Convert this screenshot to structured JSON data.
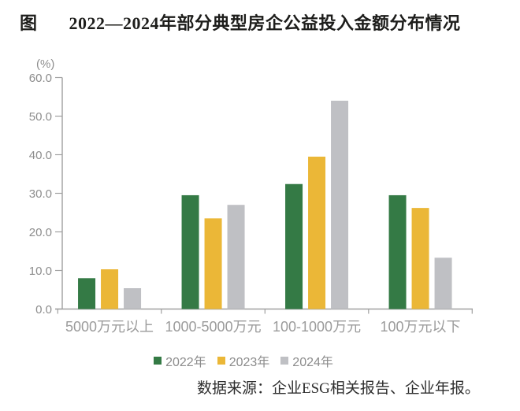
{
  "title": {
    "prefix": "图",
    "text": "2022—2024年部分典型房企公益投入金额分布情况"
  },
  "chart_data": {
    "type": "bar",
    "categories": [
      "5000万元以上",
      "1000-5000万元",
      "100-1000万元",
      "100万元以下"
    ],
    "series": [
      {
        "name": "2022年",
        "color": "#347a45",
        "values": [
          8.0,
          29.5,
          32.4,
          29.5
        ]
      },
      {
        "name": "2023年",
        "color": "#ebb737",
        "values": [
          10.3,
          23.5,
          39.5,
          26.2
        ]
      },
      {
        "name": "2024年",
        "color": "#bfc0c4",
        "values": [
          5.4,
          27.0,
          54.0,
          13.3
        ]
      }
    ],
    "ylabel": "(%)",
    "ylim": [
      0,
      60
    ],
    "ytick_step": 10,
    "ytick_labels": [
      "0.0",
      "10.0",
      "20.0",
      "30.0",
      "40.0",
      "50.0",
      "60.0"
    ],
    "legend_position": "bottom",
    "grid": false
  },
  "footer": {
    "source": "数据来源：企业ESG相关报告、企业年报。"
  },
  "colors": {
    "axis": "#a0a0a0",
    "tick_label": "#8d8d8d",
    "category_label": "#9b9b9b",
    "legend_text": "#8c8c8c",
    "title_text": "#1d1d1b",
    "footer_text": "#2e2e2e",
    "background": "#ffffff"
  }
}
